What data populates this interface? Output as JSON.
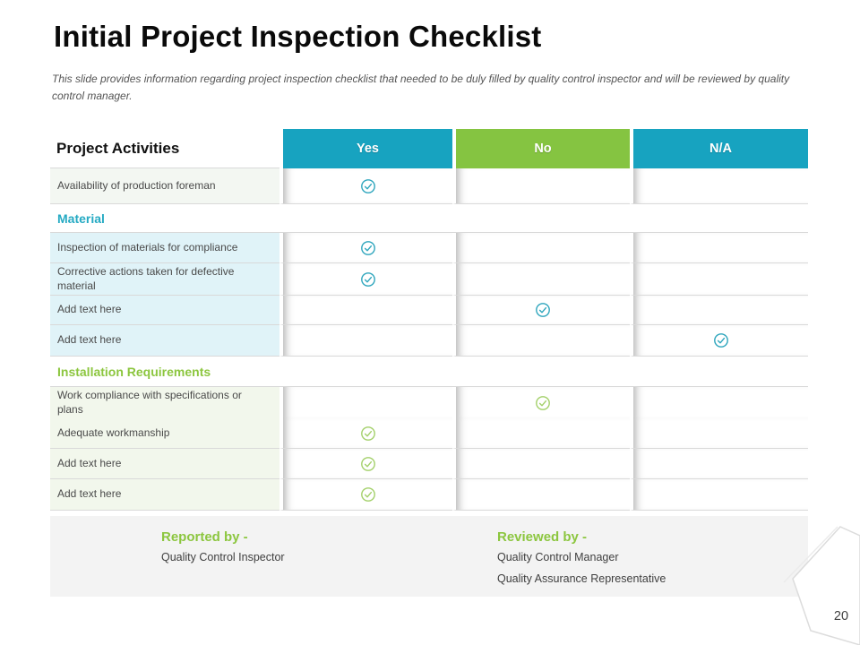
{
  "slide": {
    "title": "Initial Project Inspection Checklist",
    "subtitle": "This slide provides information regarding project inspection checklist that needed to be duly filled by quality control inspector and will be reviewed by quality control manager.",
    "page_number": "20"
  },
  "colors": {
    "header_teal": "#17a3c0",
    "header_green": "#85c441",
    "section_teal_text": "#25aac3",
    "section_green_text": "#8cc63f",
    "teal_check": "#2fa6bd",
    "green_check": "#a3d06a",
    "teal_row_bg": "#e0f3f8",
    "green_row_bg": "#f2f7ec",
    "plain_row_bg": "#f3f7f2",
    "footer_bg": "#f3f3f3"
  },
  "icons": {
    "check": "check-circle-icon"
  },
  "table": {
    "activities_header": "Project Activities",
    "columns": [
      {
        "key": "yes",
        "label": "Yes",
        "color": "#17a3c0"
      },
      {
        "key": "no",
        "label": "No",
        "color": "#85c441"
      },
      {
        "key": "na",
        "label": "N/A",
        "color": "#17a3c0"
      }
    ],
    "rows": [
      {
        "type": "item",
        "label": "Availability of production foreman",
        "check": "yes",
        "theme": "plain"
      },
      {
        "type": "section",
        "label": "Material",
        "theme": "teal"
      },
      {
        "type": "item",
        "label": "Inspection of materials for compliance",
        "check": "yes",
        "theme": "teal"
      },
      {
        "type": "item",
        "label": "Corrective actions taken for defective material",
        "check": "yes",
        "theme": "teal"
      },
      {
        "type": "item",
        "label": "Add text here",
        "check": "no",
        "theme": "teal"
      },
      {
        "type": "item",
        "label": "Add text here",
        "check": "na",
        "theme": "teal"
      },
      {
        "type": "section",
        "label": "Installation Requirements",
        "theme": "green"
      },
      {
        "type": "item",
        "label": "Work compliance with specifications or plans",
        "check": "no",
        "theme": "green"
      },
      {
        "type": "item",
        "label": "Adequate workmanship",
        "check": "yes",
        "theme": "green"
      },
      {
        "type": "item",
        "label": "Add text here",
        "check": "yes",
        "theme": "green"
      },
      {
        "type": "item",
        "label": "Add text here",
        "check": "yes",
        "theme": "green"
      }
    ]
  },
  "footer": {
    "reported_by_label": "Reported by -",
    "reported_by_value": "Quality Control Inspector",
    "reviewed_by_label": "Reviewed by -",
    "reviewed_by_values": [
      "Quality Control Manager",
      "Quality Assurance Representative"
    ]
  }
}
